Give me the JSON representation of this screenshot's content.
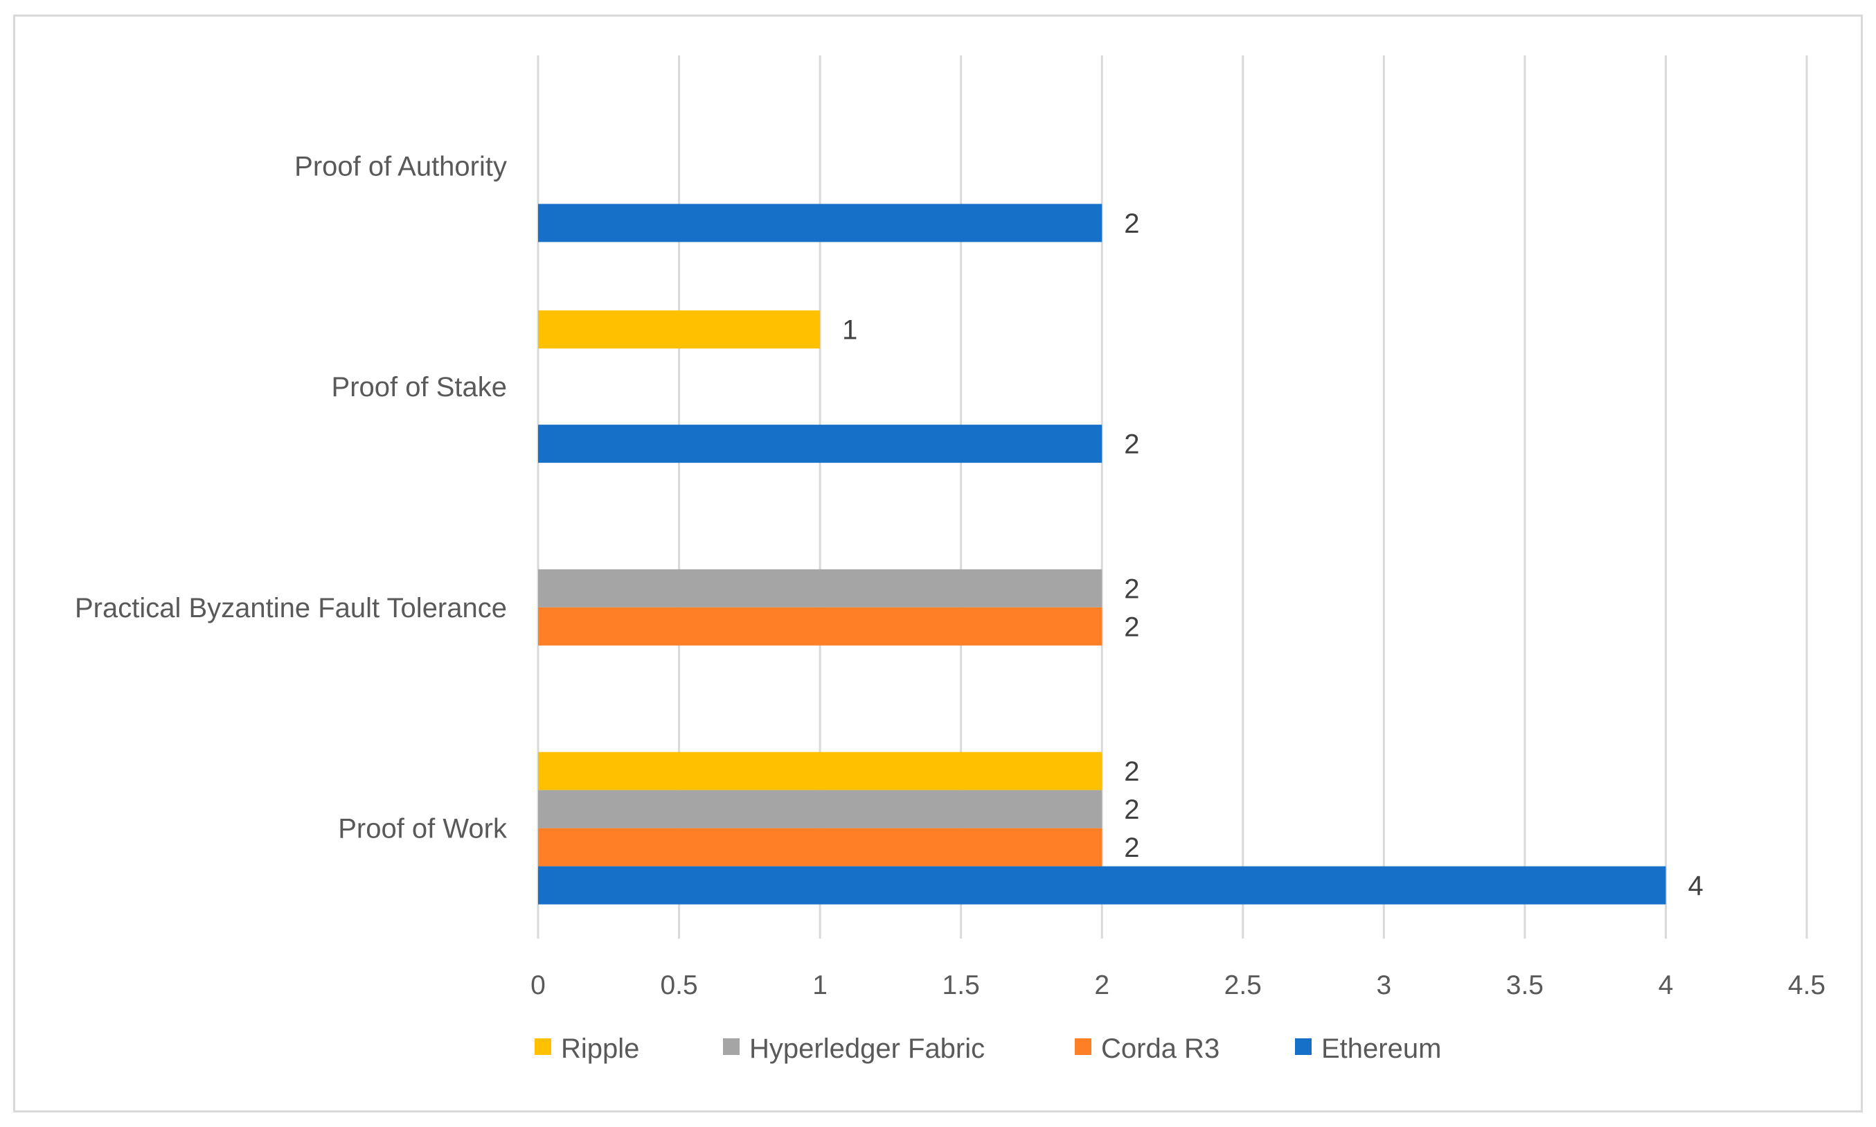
{
  "chart_data": {
    "type": "bar",
    "orientation": "horizontal",
    "title": "",
    "xlabel": "",
    "ylabel": "",
    "xlim": [
      0,
      4.5
    ],
    "x_ticks": [
      0,
      0.5,
      1,
      1.5,
      2,
      2.5,
      3,
      3.5,
      4,
      4.5
    ],
    "x_tick_labels": [
      "0",
      "0.5",
      "1",
      "1.5",
      "2",
      "2.5",
      "3",
      "3.5",
      "4",
      "4.5"
    ],
    "grid": "vertical",
    "legend_position": "bottom",
    "categories": [
      "Proof of Work",
      "Practical Byzantine Fault Tolerance",
      "Proof of Stake",
      "Proof of Authority"
    ],
    "series": [
      {
        "name": "Ripple",
        "color": "#FFC000",
        "values": [
          2,
          null,
          1,
          null
        ]
      },
      {
        "name": "Hyperledger Fabric",
        "color": "#A5A5A5",
        "values": [
          2,
          2,
          null,
          null
        ]
      },
      {
        "name": "Corda R3",
        "color": "#FF7F27",
        "values": [
          2,
          2,
          null,
          null
        ]
      },
      {
        "name": "Ethereum",
        "color": "#1670C8",
        "values": [
          4,
          null,
          2,
          2
        ]
      }
    ],
    "data_labels": true
  }
}
